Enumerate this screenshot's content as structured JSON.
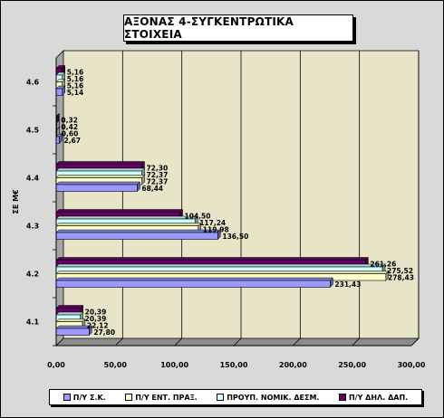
{
  "chart_data": {
    "type": "bar",
    "orientation": "horizontal",
    "title": "ΑΞΟΝΑΣ 4-ΣΥΓΚΕΝΤΡΩΤΙΚΑ ΣΤΟΙΧΕΙΑ",
    "ylabel": "ΣΕ Μ€",
    "xlabel": "",
    "categories": [
      "4.1",
      "4.2",
      "4.3",
      "4.4",
      "4.5",
      "4.6"
    ],
    "xlim": [
      0,
      300
    ],
    "xticks": [
      "0,00",
      "50,00",
      "100,00",
      "150,00",
      "200,00",
      "250,00",
      "300,00"
    ],
    "xtick_values": [
      0,
      50,
      100,
      150,
      200,
      250,
      300
    ],
    "grid": true,
    "legend_position": "bottom",
    "series": [
      {
        "name": "Π/Υ Σ.Κ.",
        "color": "#9999ff",
        "values": [
          27.8,
          231.43,
          136.5,
          68.44,
          2.67,
          5.14
        ],
        "labels": [
          "27,80",
          "231,43",
          "136,50",
          "68,44",
          "2,67",
          "5,14"
        ]
      },
      {
        "name": "Π/Υ ΕΝΤ. ΠΡΑΞ.",
        "color": "#ffffcc",
        "values": [
          22.12,
          278.43,
          119.98,
          72.37,
          0.6,
          5.16
        ],
        "labels": [
          "22,12",
          "278,43",
          "119,98",
          "72,37",
          "0,60",
          "5,16"
        ]
      },
      {
        "name": "ΠΡΟΥΠ. ΝΟΜΙΚ. ΔΕΣΜ.",
        "color": "#ccffff",
        "values": [
          20.39,
          275.52,
          117.24,
          72.37,
          0.42,
          5.16
        ],
        "labels": [
          "20,39",
          "275,52",
          "117,24",
          "72,37",
          "0,42",
          "5,16"
        ]
      },
      {
        "name": "Π/Υ ΔΗΛ. ΔΑΠ.",
        "color": "#660066",
        "values": [
          20.39,
          261.26,
          104.5,
          72.3,
          0.32,
          5.16
        ],
        "labels": [
          "20,39",
          "261,26",
          "104,50",
          "72,30",
          "0,32",
          "5,16"
        ]
      }
    ]
  }
}
